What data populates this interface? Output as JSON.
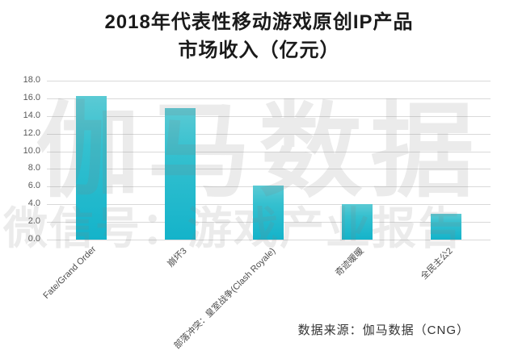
{
  "title": {
    "line1": "2018年代表性移动游戏原创IP产品",
    "line2": "市场收入（亿元）"
  },
  "watermark": {
    "line1": "伽马数据",
    "line2": "微信号：游戏产业报告"
  },
  "source_note": "数据来源：伽马数据（CNG）",
  "colors": {
    "background": "#ffffff",
    "bar_top": "#5bcad4",
    "bar_mid": "#34c0cf",
    "bar_bottom": "#14b3ca",
    "gridline": "#d9d9d9",
    "watermark": "rgba(130,130,130,0.16)",
    "title_text": "#1a1a1a",
    "axis_text": "#595959"
  },
  "chart_data": {
    "type": "bar",
    "title": "2018年代表性移动游戏原创IP产品市场收入（亿元）",
    "categories": [
      "Fate/Grand Order",
      "崩坏3",
      "部落冲突：皇室战争(Clash Royale)",
      "奇迹暖暖",
      "全民主公2"
    ],
    "values": [
      16.3,
      14.9,
      6.1,
      4.0,
      2.9
    ],
    "xlabel": "",
    "ylabel": "",
    "ylim": [
      0,
      18
    ],
    "ytick_step": 2,
    "ytick_labels": [
      "0.0",
      "2.0",
      "4.0",
      "6.0",
      "8.0",
      "10.0",
      "12.0",
      "14.0",
      "16.0",
      "18.0"
    ],
    "grid": true,
    "legend": "none",
    "xlabel_rotation_deg": 45,
    "unit": "亿元"
  }
}
